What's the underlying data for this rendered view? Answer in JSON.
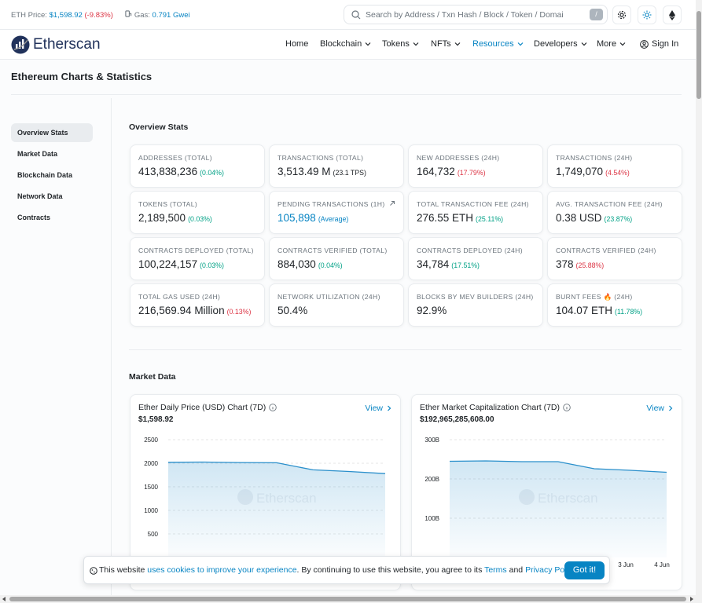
{
  "topbar": {
    "eth_price_label": "ETH Price:",
    "eth_price": "$1,598.92",
    "eth_change": "(-9.83%)",
    "gas_label": "Gas:",
    "gas": "0.791 Gwei",
    "search_placeholder": "Search by Address / Txn Hash / Block / Token / Domain Name",
    "search_key": "/"
  },
  "nav": {
    "brand": "Etherscan",
    "items": [
      "Home",
      "Blockchain",
      "Tokens",
      "NFTs",
      "Resources",
      "Developers",
      "More"
    ],
    "active_index": 4,
    "sign_in": "Sign In"
  },
  "page_title": "Ethereum Charts & Statistics",
  "sidebar": [
    "Overview Stats",
    "Market Data",
    "Blockchain Data",
    "Network Data",
    "Contracts"
  ],
  "overview": {
    "heading": "Overview Stats",
    "stats": [
      {
        "label": "ADDRESSES (TOTAL)",
        "value": "413,838,236",
        "change": "(0.04%)",
        "trend": "up"
      },
      {
        "label": "TRANSACTIONS (TOTAL)",
        "value": "3,513.49 M",
        "change": "(23.1 TPS)",
        "trend": "neutral"
      },
      {
        "label": "NEW ADDRESSES (24H)",
        "value": "164,732",
        "change": "(17.79%)",
        "trend": "down"
      },
      {
        "label": "TRANSACTIONS (24H)",
        "value": "1,749,070",
        "change": "(4.54%)",
        "trend": "down"
      },
      {
        "label": "TOKENS (TOTAL)",
        "value": "2,189,500",
        "change": "(0.03%)",
        "trend": "up"
      },
      {
        "label": "PENDING TRANSACTIONS (1H)",
        "value": "105,898",
        "change": "(Average)",
        "trend": "link"
      },
      {
        "label": "TOTAL TRANSACTION FEE (24H)",
        "value": "276.55 ETH",
        "change": "(25.11%)",
        "trend": "up"
      },
      {
        "label": "AVG. TRANSACTION FEE (24H)",
        "value": "0.38 USD",
        "change": "(23.87%)",
        "trend": "up"
      },
      {
        "label": "CONTRACTS DEPLOYED (TOTAL)",
        "value": "100,224,157",
        "change": "(0.03%)",
        "trend": "up"
      },
      {
        "label": "CONTRACTS VERIFIED (TOTAL)",
        "value": "884,030",
        "change": "(0.04%)",
        "trend": "up"
      },
      {
        "label": "CONTRACTS DEPLOYED (24H)",
        "value": "34,784",
        "change": "(17.51%)",
        "trend": "up"
      },
      {
        "label": "CONTRACTS VERIFIED (24H)",
        "value": "378",
        "change": "(25.88%)",
        "trend": "down"
      },
      {
        "label": "TOTAL GAS USED (24H)",
        "value": "216,569.94 Million",
        "change": "(0.13%)",
        "trend": "down"
      },
      {
        "label": "NETWORK UTILIZATION (24H)",
        "value": "50.4%"
      },
      {
        "label": "BLOCKS BY MEV BUILDERS (24H)",
        "value": "92.9%"
      },
      {
        "label": "BURNT FEES 🔥 (24H)",
        "value": "104.07 ETH",
        "change": "(11.78%)",
        "trend": "up"
      }
    ]
  },
  "market": {
    "heading": "Market Data",
    "charts": [
      {
        "type": "line",
        "title": "Ether Daily Price (USD) Chart (7D)",
        "view": "View",
        "value": "$1,598.92",
        "color": "#2a8fcb",
        "categories": [
          null,
          null,
          null,
          null,
          null,
          null,
          null
        ],
        "values": [
          2020,
          2025,
          2015,
          2010,
          1860,
          1825,
          1780
        ],
        "ylim": [
          0,
          2500
        ],
        "yticks": [
          500,
          1000,
          1500,
          2000,
          2500
        ],
        "grid": true
      },
      {
        "type": "line",
        "title": "Ether Market Capitalization Chart (7D)",
        "view": "View",
        "value": "$192,965,285,608.00",
        "color": "#2a8fcb",
        "categories": [
          null,
          null,
          null,
          null,
          null,
          "3 Jun",
          "4 Jun"
        ],
        "values": [
          245000000000,
          246000000000,
          244000000000,
          244000000000,
          226000000000,
          222000000000,
          217000000000
        ],
        "ylim": [
          0,
          300000000000
        ],
        "yticks": [
          {
            "value": 100000000000,
            "label": "100B"
          },
          {
            "value": 200000000000,
            "label": "200B"
          },
          {
            "value": 300000000000,
            "label": "300B"
          }
        ],
        "grid": true
      }
    ]
  },
  "cookie": {
    "text_1": "This website",
    "link_1": "uses cookies to improve your experience",
    "text_2": ". By continuing to use this website, you agree to its",
    "link_2": "Terms",
    "text_3": "and",
    "link_3": "Privacy Policy",
    "text_4": ".",
    "button": "Got it!"
  }
}
